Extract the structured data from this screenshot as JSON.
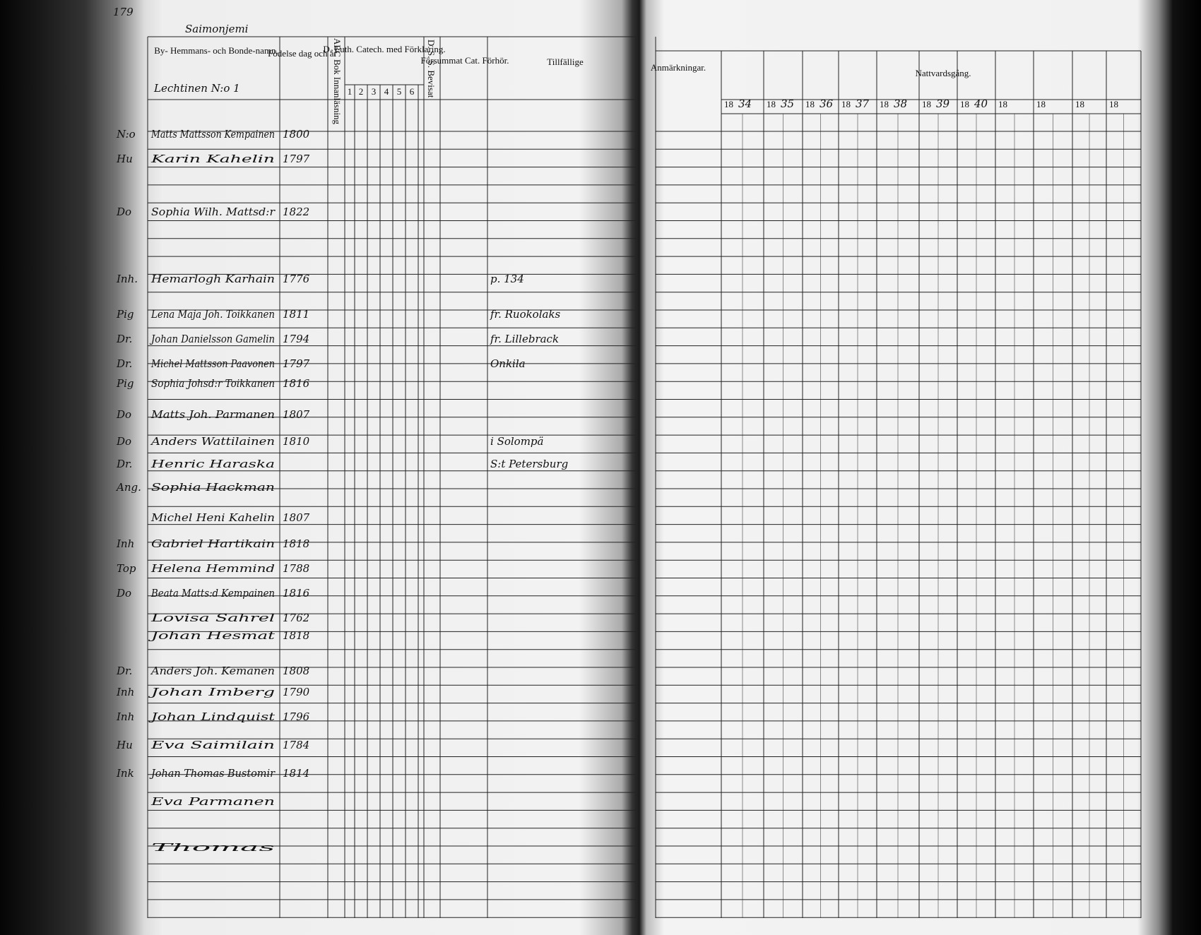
{
  "page_number": "179",
  "village": "Saimonjemi",
  "household": "Lechtinen N:o 1",
  "headers": {
    "name": "By- Hemmans- och Bonde-namn.",
    "born": "Födelse dag och år",
    "abc": "ABC Bok Innanläsning",
    "catechism": "D. Luth. Catech. med Förklaring.",
    "catechism_parts": [
      "1",
      "2",
      "3",
      "4",
      "5",
      "6"
    ],
    "dss": "D. S. S. Bevisat",
    "missed": "Försummat Cat. Förhör.",
    "incidental": "Tillfällige",
    "remarks": "Anmärkningar.",
    "communion": "Nattvardsgång.",
    "years": [
      {
        "printed": "18",
        "written": "34"
      },
      {
        "printed": "18",
        "written": "35"
      },
      {
        "printed": "18",
        "written": "36"
      },
      {
        "printed": "18",
        "written": "37"
      },
      {
        "printed": "18",
        "written": "38"
      },
      {
        "printed": "18",
        "written": "39"
      },
      {
        "printed": "18",
        "written": "40"
      },
      {
        "printed": "18"
      },
      {
        "printed": "18"
      },
      {
        "printed": "18"
      },
      {
        "printed": "18"
      }
    ]
  },
  "rows": [
    {
      "role": "N:o",
      "name": "Matts Mattsson Kempainen",
      "born": "1800"
    },
    {
      "role": "Hu",
      "name": "Karin Kahelin",
      "born": "1797"
    },
    {
      "role": "Do",
      "name": "Sophia Wilh. Mattsd:r",
      "born": "1822"
    },
    {
      "role": "Inh.",
      "name": "Hemarlogh Karhain",
      "born": "1776",
      "note": "p. 134"
    },
    {
      "role": "Pig",
      "name": "Lena Maja Joh. Toikkanen",
      "born": "1811",
      "note": "fr. Ruokolaks"
    },
    {
      "role": "Dr.",
      "name": "Johan Danielsson Gamelin",
      "born": "1794",
      "note": "fr. Lillebrack"
    },
    {
      "role": "Dr.",
      "name": "Michel Mattsson Paavonen",
      "born": "1797",
      "note": "Onkila"
    },
    {
      "role": "Pig",
      "name": "Sophia Johsd:r Toikkanen",
      "born": "1816"
    },
    {
      "role": "Do",
      "name": "Matts Joh. Parmanen",
      "born": "1807"
    },
    {
      "role": "Do",
      "name": "Anders Wattilainen",
      "born": "1810",
      "note": "i Solompä"
    },
    {
      "role": "Dr.",
      "name": "Henric Haraska",
      "note": "S:t Petersburg"
    },
    {
      "role": "Ang.",
      "name": "Sophia Hackman"
    },
    {
      "role": "",
      "name": "Michel Heni Kahelin",
      "born": "1807"
    },
    {
      "role": "Inh",
      "name": "Gabriel Hartikain",
      "born": "1818"
    },
    {
      "role": "Top",
      "name": "Helena Hemmind",
      "born": "1788"
    },
    {
      "role": "Do",
      "name": "Beata Matts:d Kempainen",
      "born": "1816"
    },
    {
      "role": "",
      "name": "Lovisa Sahrel",
      "born": "1762"
    },
    {
      "role": "",
      "name": "Johan Hesmat",
      "born": "1818"
    },
    {
      "role": "Dr.",
      "name": "Anders Joh. Kemanen",
      "born": "1808"
    },
    {
      "role": "Inh",
      "name": "Johan Imberg",
      "born": "1790"
    },
    {
      "role": "Inh",
      "name": "Johan Lindquist",
      "born": "1796"
    },
    {
      "role": "Hu",
      "name": "Eva Saimilain",
      "born": "1784"
    },
    {
      "role": "Ink",
      "name": "Johan Thomas Bustomir",
      "born": "1814"
    },
    {
      "role": "",
      "name": "Eva Parmanen"
    },
    {
      "role": "",
      "name": "Thomas"
    }
  ]
}
